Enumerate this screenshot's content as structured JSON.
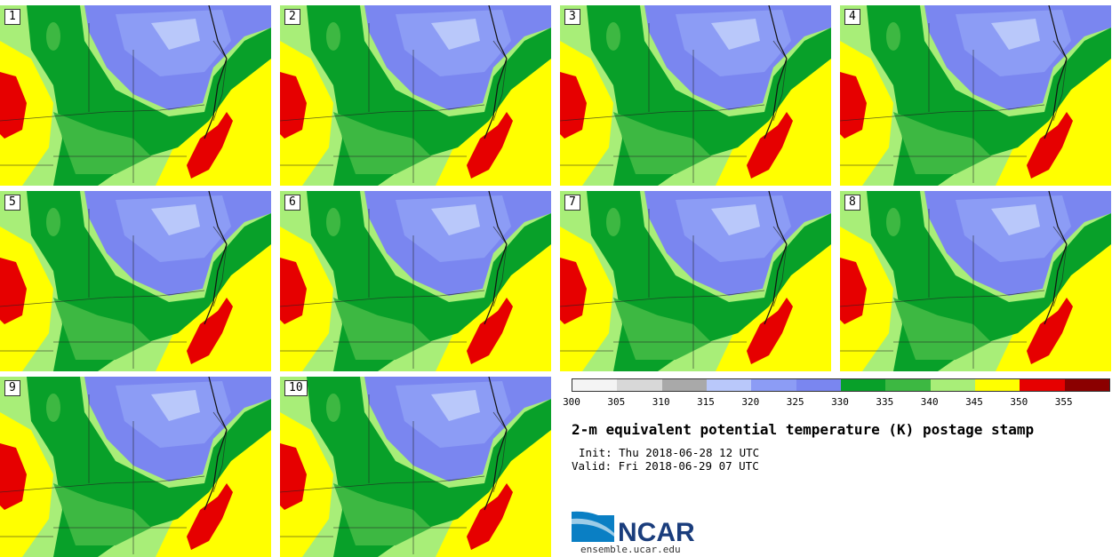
{
  "panels": [
    {
      "label": "1"
    },
    {
      "label": "2"
    },
    {
      "label": "3"
    },
    {
      "label": "4"
    },
    {
      "label": "5"
    },
    {
      "label": "6"
    },
    {
      "label": "7"
    },
    {
      "label": "8"
    },
    {
      "label": "9"
    },
    {
      "label": "10"
    }
  ],
  "colorbar": {
    "colors": [
      "#f4f4f4",
      "#d8d8d8",
      "#a9a9a9",
      "#b9c8fa",
      "#8c9cf5",
      "#7a86f0",
      "#08a029",
      "#3db842",
      "#a8ee78",
      "#ffff00",
      "#e60000",
      "#8b0000"
    ],
    "ticks": [
      "300",
      "305",
      "310",
      "315",
      "320",
      "325",
      "330",
      "335",
      "340",
      "345",
      "350",
      "355"
    ]
  },
  "title": "2-m equivalent potential temperature (K) postage stamp",
  "init": "Init: Thu 2018-06-28 12 UTC",
  "valid": "Valid: Fri 2018-06-29 07 UTC",
  "logo": {
    "text": "NCAR",
    "colors": {
      "swoosh": "#0a7fc4",
      "text": "#1a3d7c"
    }
  },
  "site": "ensemble.ucar.edu"
}
